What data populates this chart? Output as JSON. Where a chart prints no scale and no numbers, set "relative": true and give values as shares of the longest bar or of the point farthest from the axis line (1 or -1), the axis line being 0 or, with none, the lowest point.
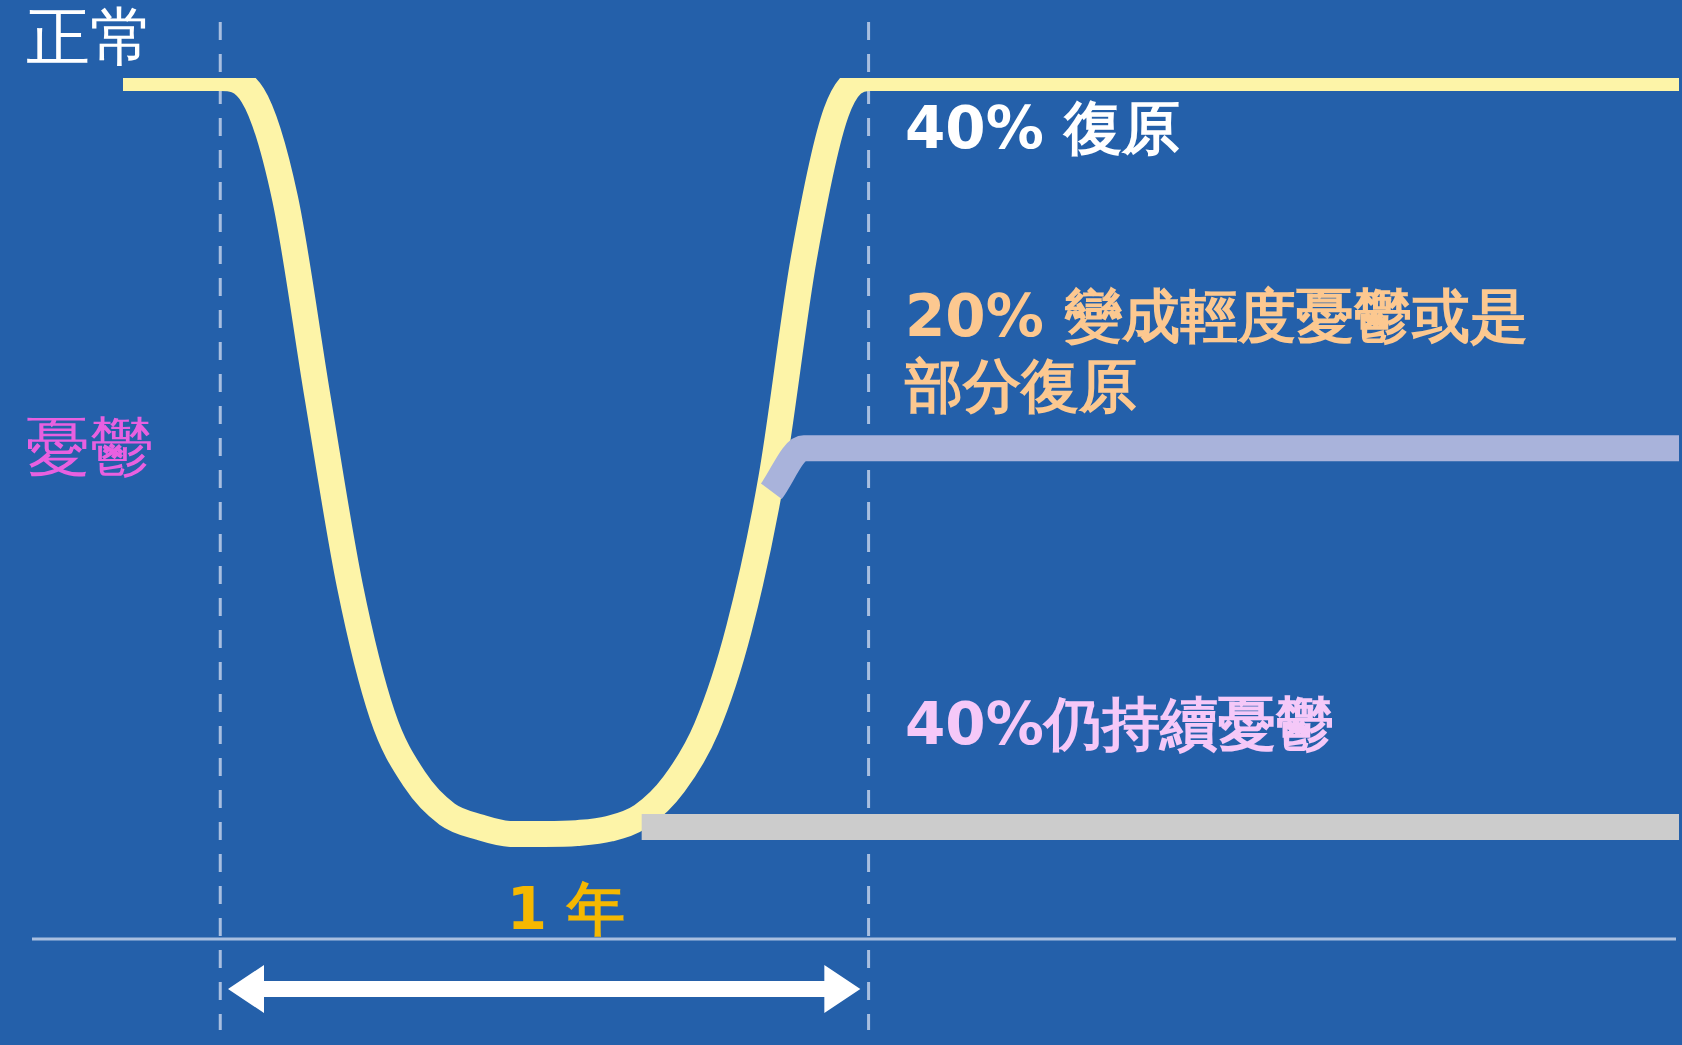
{
  "chart_data": {
    "type": "line",
    "relative": true,
    "marker": "none",
    "categories": [
      null,
      null,
      null,
      null,
      null,
      null,
      null,
      null,
      null,
      null,
      null,
      null,
      null,
      null,
      null,
      null,
      null,
      null,
      null,
      null,
      null,
      null,
      null,
      null,
      null,
      null,
      null,
      null,
      null,
      null,
      null,
      null,
      null,
      null,
      null,
      null,
      null,
      null,
      null,
      null,
      null,
      null,
      null,
      null,
      null,
      null,
      null,
      null,
      null
    ],
    "series": [
      {
        "color": "#fdf4a8",
        "values": [
          1,
          1,
          1,
          1,
          0.98,
          0.86,
          0.63,
          0.41,
          0.26,
          0.185,
          0.145,
          0.13,
          0.122,
          0.122,
          0.123,
          0.128,
          0.143,
          0.18,
          0.245,
          0.36,
          0.535,
          0.79,
          0.96,
          1,
          1,
          1,
          1,
          1,
          1,
          1,
          1,
          1,
          1,
          1,
          1,
          1,
          1,
          1,
          1,
          1,
          1,
          1,
          1,
          1,
          1,
          1,
          1,
          1,
          1
        ]
      },
      {
        "color": "#a9b3db",
        "values": [
          null,
          null,
          null,
          null,
          null,
          null,
          null,
          null,
          null,
          null,
          null,
          null,
          null,
          null,
          null,
          null,
          null,
          null,
          null,
          null,
          0.52,
          0.57,
          0.57,
          0.57,
          0.57,
          0.57,
          0.57,
          0.57,
          0.57,
          0.57,
          0.57,
          0.57,
          0.57,
          0.57,
          0.57,
          0.57,
          0.57,
          0.57,
          0.57,
          0.57,
          0.57,
          0.57,
          0.57,
          0.57,
          0.57,
          0.57,
          0.57,
          0.57,
          0.57
        ]
      },
      {
        "color": "#cccccc",
        "values": [
          null,
          null,
          null,
          null,
          null,
          null,
          null,
          null,
          null,
          null,
          null,
          null,
          null,
          null,
          null,
          null,
          0.13,
          0.13,
          0.13,
          0.13,
          0.13,
          0.13,
          0.13,
          0.13,
          0.13,
          0.13,
          0.13,
          0.13,
          0.13,
          0.13,
          0.13,
          0.13,
          0.13,
          0.13,
          0.13,
          0.13,
          0.13,
          0.13,
          0.13,
          0.13,
          0.13,
          0.13,
          0.13,
          0.13,
          0.13,
          0.13,
          0.13,
          0.13,
          0.13
        ]
      }
    ],
    "ref_lines": [
      {
        "axis": "y",
        "value": 0,
        "color": "#a9bfe0"
      }
    ],
    "annotations": [
      "正常",
      "憂鬱",
      "40% 復原",
      "20% 變成輕度憂鬱或是部分復原",
      "40%仍持續憂鬱",
      "1 年"
    ]
  }
}
